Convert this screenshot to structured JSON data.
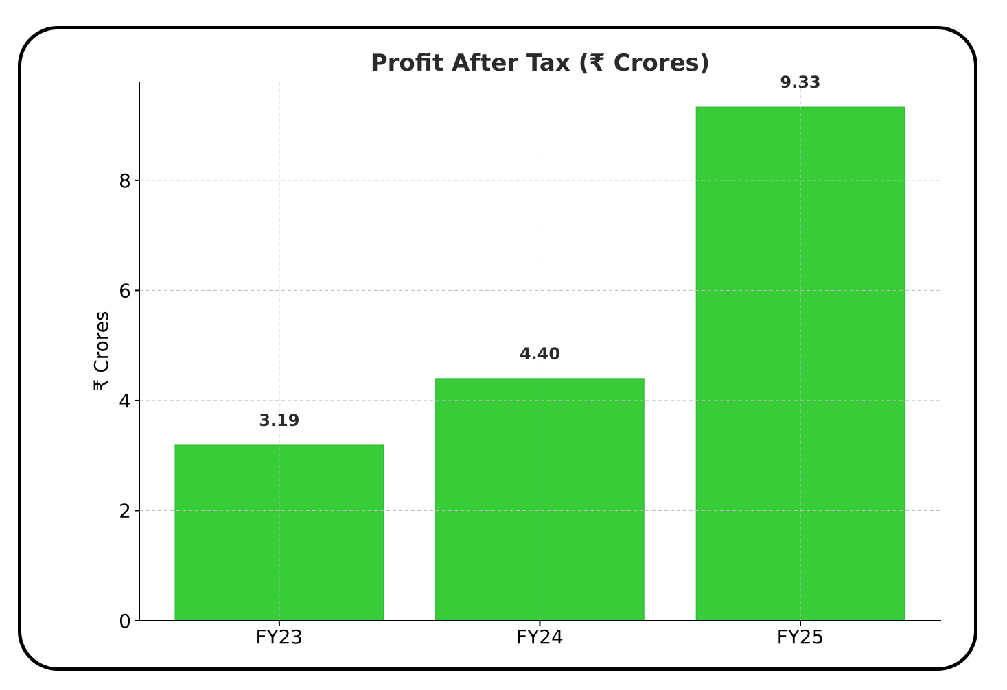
{
  "chart_data": {
    "type": "bar",
    "title": "Profit After Tax (₹ Crores)",
    "xlabel": "",
    "ylabel": "₹ Crores",
    "categories": [
      "FY23",
      "FY24",
      "FY25"
    ],
    "values": [
      3.19,
      4.4,
      9.33
    ],
    "data_labels": [
      "3.19",
      "4.40",
      "9.33"
    ],
    "yticks": [
      0,
      2,
      4,
      6,
      8
    ],
    "ylim": [
      0,
      9.78
    ],
    "grid": true,
    "bar_color": "#38cc38"
  }
}
